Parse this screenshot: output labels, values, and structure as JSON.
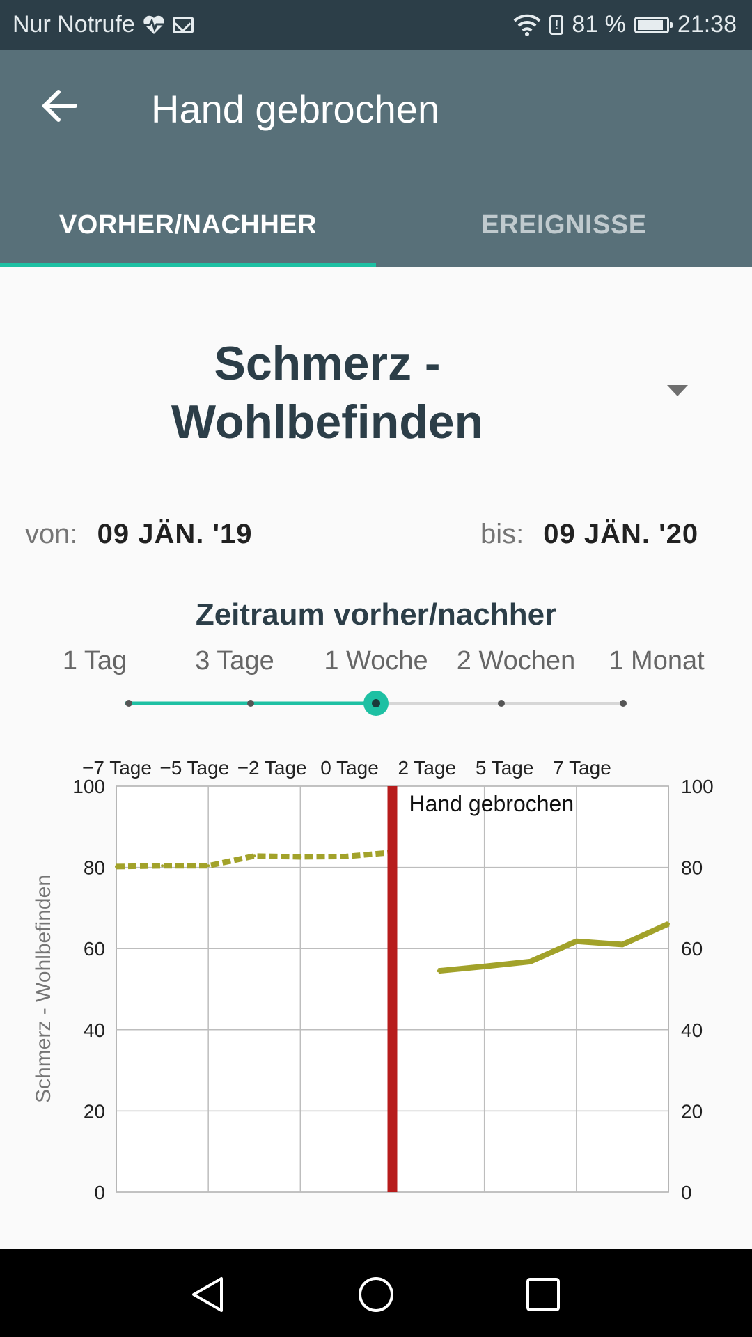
{
  "status_bar": {
    "carrier": "Nur Notrufe",
    "battery": "81 %",
    "time": "21:38",
    "icons": [
      "heart-pulse-icon",
      "mail-icon",
      "wifi-icon",
      "alert-icon",
      "battery-icon"
    ]
  },
  "app_bar": {
    "title": "Hand gebrochen",
    "back_icon": "arrow-back-icon"
  },
  "tabs": [
    {
      "label": "VORHER/NACHHER",
      "active": true
    },
    {
      "label": "EREIGNISSE",
      "active": false
    }
  ],
  "metric": {
    "line1": "Schmerz -",
    "line2": "Wohlbefinden",
    "dropdown_icon": "caret-down-icon"
  },
  "dates": {
    "from_label": "von:",
    "from_value": "09 JÄN. '19",
    "to_label": "bis:",
    "to_value": "09 JÄN. '20"
  },
  "period": {
    "title": "Zeitraum vorher/nachher",
    "options": [
      "1 Tag",
      "3 Tage",
      "1 Woche",
      "2 Wochen",
      "1 Monat"
    ],
    "selected_index": 2
  },
  "colors": {
    "accent": "#1ec0a3",
    "appbar": "#587079",
    "event_line": "#b71c1c",
    "series": "#a2a22a"
  },
  "chart_data": {
    "type": "line",
    "x_tick_labels": [
      "−7 Tage",
      "−5 Tage",
      "−2 Tage",
      "0 Tage",
      "2 Tage",
      "5 Tage",
      "7 Tage"
    ],
    "ylabel": "Schmerz - Wohlbefinden",
    "ylim": [
      0,
      100
    ],
    "y_ticks": [
      0,
      20,
      40,
      60,
      80,
      100
    ],
    "grid": true,
    "event": {
      "label": "Hand gebrochen",
      "x": 0
    },
    "series": [
      {
        "style": "dashed",
        "x": [
          -6,
          -5,
          -4,
          -3,
          -2,
          -1,
          0
        ],
        "y": [
          80.2,
          80.4,
          80.4,
          82.8,
          82.6,
          82.7,
          83.7
        ]
      },
      {
        "style": "solid",
        "x": [
          1,
          2,
          3,
          4,
          5,
          6
        ],
        "y": [
          54.5,
          55.6,
          56.8,
          61.8,
          61.0,
          66.1
        ]
      }
    ]
  },
  "nav_bar": {
    "icons": [
      "nav-back-icon",
      "nav-home-icon",
      "nav-recents-icon"
    ]
  }
}
